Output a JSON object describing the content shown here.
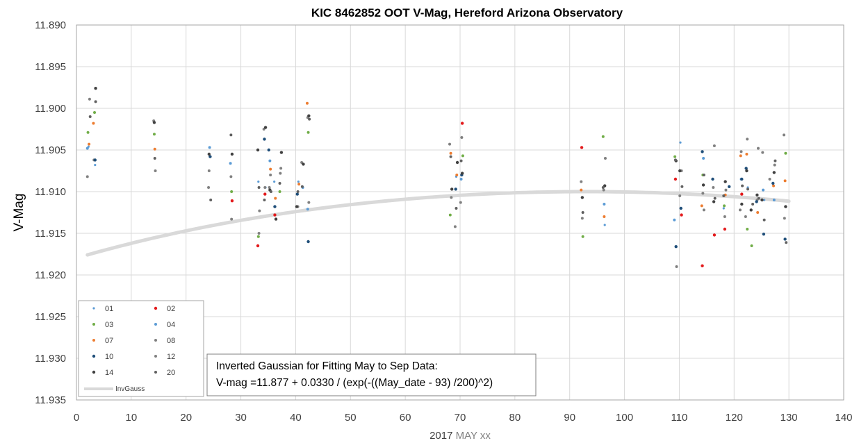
{
  "chart_data": {
    "type": "scatter",
    "title": "KIC 8462852 OOT V-Mag, Hereford Arizona Observatory",
    "xlabel_prefix": "2017 ",
    "xlabel_suffix": "MAY xx",
    "ylabel": "V-Mag",
    "xlim": [
      0,
      140
    ],
    "ylim": [
      11.935,
      11.89
    ],
    "y_inverted": true,
    "x_ticks": [
      0,
      10,
      20,
      30,
      40,
      50,
      60,
      70,
      80,
      90,
      100,
      110,
      120,
      130,
      140
    ],
    "y_ticks": [
      11.89,
      11.895,
      11.9,
      11.905,
      11.91,
      11.915,
      11.92,
      11.925,
      11.93,
      11.935
    ],
    "y_tick_labels": [
      "11.890",
      "11.895",
      "11.900",
      "11.905",
      "11.910",
      "11.915",
      "11.920",
      "11.925",
      "11.930",
      "11.935"
    ],
    "grid": true,
    "legend_position": "bottom-left",
    "series": [
      {
        "name": "01",
        "color": "#5b9bd5",
        "size": 1.6,
        "points": [
          [
            2.2,
            11.9046
          ],
          [
            3.4,
            11.9068
          ],
          [
            33.2,
            11.9088
          ],
          [
            34.5,
            11.9095
          ],
          [
            36.1,
            11.9088
          ],
          [
            40.5,
            11.9088
          ],
          [
            69.3,
            11.9082
          ],
          [
            96.4,
            11.914
          ],
          [
            110.2,
            11.9041
          ],
          [
            118.1,
            11.912
          ],
          [
            122.5,
            11.9095
          ],
          [
            125.5,
            11.911
          ]
        ]
      },
      {
        "name": "02",
        "color": "#e31a1c",
        "size": 2.2,
        "points": [
          [
            28.4,
            11.9111
          ],
          [
            33.1,
            11.9165
          ],
          [
            34.4,
            11.9103
          ],
          [
            36.2,
            11.9128
          ],
          [
            70.4,
            11.9018
          ],
          [
            92.2,
            11.9047
          ],
          [
            109.3,
            11.9085
          ],
          [
            110.4,
            11.9128
          ],
          [
            114.2,
            11.9189
          ],
          [
            116.4,
            11.9152
          ],
          [
            118.3,
            11.9145
          ],
          [
            121.4,
            11.9103
          ]
        ]
      },
      {
        "name": "03",
        "color": "#70ad47",
        "size": 2.0,
        "points": [
          [
            2.1,
            11.9029
          ],
          [
            3.3,
            11.9005
          ],
          [
            14.2,
            11.9031
          ],
          [
            28.3,
            11.91
          ],
          [
            33.2,
            11.9154
          ],
          [
            37.1,
            11.91
          ],
          [
            42.3,
            11.9029
          ],
          [
            68.2,
            11.9128
          ],
          [
            70.5,
            11.9057
          ],
          [
            92.4,
            11.9154
          ],
          [
            96.1,
            11.9034
          ],
          [
            109.2,
            11.9058
          ],
          [
            114.3,
            11.908
          ],
          [
            118.2,
            11.9117
          ],
          [
            122.4,
            11.9145
          ],
          [
            123.2,
            11.9165
          ],
          [
            129.4,
            11.9054
          ]
        ]
      },
      {
        "name": "04",
        "color": "#5b9bd5",
        "size": 2.0,
        "points": [
          [
            2.0,
            11.9048
          ],
          [
            24.3,
            11.9047
          ],
          [
            28.1,
            11.9066
          ],
          [
            35.3,
            11.9063
          ],
          [
            41.3,
            11.9095
          ],
          [
            42.2,
            11.9121
          ],
          [
            70.2,
            11.9085
          ],
          [
            96.3,
            11.9115
          ],
          [
            109.1,
            11.9134
          ],
          [
            114.4,
            11.906
          ],
          [
            121.3,
            11.9085
          ],
          [
            125.3,
            11.9098
          ],
          [
            127.3,
            11.911
          ]
        ]
      },
      {
        "name": "07",
        "color": "#ed7d31",
        "size": 2.0,
        "points": [
          [
            2.3,
            11.9043
          ],
          [
            3.1,
            11.9018
          ],
          [
            14.3,
            11.9049
          ],
          [
            35.4,
            11.9073
          ],
          [
            36.3,
            11.9108
          ],
          [
            40.6,
            11.9091
          ],
          [
            42.1,
            11.8994
          ],
          [
            68.3,
            11.9054
          ],
          [
            69.4,
            11.908
          ],
          [
            92.1,
            11.9098
          ],
          [
            96.3,
            11.913
          ],
          [
            114.1,
            11.9117
          ],
          [
            118.4,
            11.9104
          ],
          [
            121.2,
            11.9057
          ],
          [
            122.3,
            11.9055
          ],
          [
            124.3,
            11.9125
          ],
          [
            127.2,
            11.9093
          ],
          [
            129.3,
            11.9087
          ]
        ]
      },
      {
        "name": "08",
        "color": "#808080",
        "size": 2.0,
        "points": [
          [
            2.0,
            11.9082
          ],
          [
            3.2,
            11.9062
          ],
          [
            14.4,
            11.9075
          ],
          [
            24.1,
            11.9095
          ],
          [
            28.2,
            11.9082
          ],
          [
            33.4,
            11.9123
          ],
          [
            34.2,
            11.9025
          ],
          [
            35.2,
            11.9095
          ],
          [
            37.2,
            11.9078
          ],
          [
            40.4,
            11.9118
          ],
          [
            42.4,
            11.9113
          ],
          [
            68.4,
            11.9107
          ],
          [
            69.1,
            11.9142
          ],
          [
            70.1,
            11.9113
          ],
          [
            92.3,
            11.9132
          ],
          [
            96.2,
            11.9098
          ],
          [
            110.1,
            11.9105
          ],
          [
            114.5,
            11.9122
          ],
          [
            116.2,
            11.9095
          ],
          [
            118.5,
            11.9098
          ],
          [
            121.1,
            11.9122
          ],
          [
            122.1,
            11.913
          ],
          [
            124.2,
            11.911
          ],
          [
            126.5,
            11.9085
          ],
          [
            129.2,
            11.9132
          ]
        ]
      },
      {
        "name": "10",
        "color": "#1f4e79",
        "size": 2.2,
        "points": [
          [
            3.4,
            11.9062
          ],
          [
            24.4,
            11.9058
          ],
          [
            34.3,
            11.9037
          ],
          [
            35.1,
            11.905
          ],
          [
            36.2,
            11.9118
          ],
          [
            40.3,
            11.9103
          ],
          [
            42.3,
            11.916
          ],
          [
            69.2,
            11.9097
          ],
          [
            70.3,
            11.908
          ],
          [
            109.4,
            11.9166
          ],
          [
            110.3,
            11.912
          ],
          [
            114.2,
            11.9052
          ],
          [
            116.1,
            11.9085
          ],
          [
            119.1,
            11.9094
          ],
          [
            121.4,
            11.9085
          ],
          [
            122.2,
            11.9072
          ],
          [
            124.1,
            11.9112
          ],
          [
            125.4,
            11.9151
          ],
          [
            127.1,
            11.909
          ],
          [
            129.3,
            11.9157
          ]
        ]
      },
      {
        "name": "12",
        "color": "#808080",
        "size": 2.0,
        "points": [
          [
            2.4,
            11.8989
          ],
          [
            14.1,
            11.9015
          ],
          [
            24.2,
            11.9075
          ],
          [
            28.3,
            11.9133
          ],
          [
            33.3,
            11.915
          ],
          [
            34.4,
            11.9095
          ],
          [
            35.4,
            11.908
          ],
          [
            37.3,
            11.9072
          ],
          [
            41.1,
            11.9065
          ],
          [
            42.2,
            11.9011
          ],
          [
            68.1,
            11.9043
          ],
          [
            70.3,
            11.9035
          ],
          [
            92.1,
            11.9088
          ],
          [
            96.5,
            11.906
          ],
          [
            109.5,
            11.919
          ],
          [
            110.4,
            11.9075
          ],
          [
            114.3,
            11.9102
          ],
          [
            116.4,
            11.9045
          ],
          [
            118.3,
            11.913
          ],
          [
            121.3,
            11.9052
          ],
          [
            122.4,
            11.9037
          ],
          [
            124.4,
            11.9048
          ],
          [
            125.2,
            11.9053
          ],
          [
            127.4,
            11.9068
          ],
          [
            129.1,
            11.9032
          ]
        ]
      },
      {
        "name": "14",
        "color": "#404040",
        "size": 2.2,
        "points": [
          [
            3.5,
            11.8976
          ],
          [
            14.2,
            11.9017
          ],
          [
            24.2,
            11.9055
          ],
          [
            28.4,
            11.9055
          ],
          [
            33.1,
            11.905
          ],
          [
            34.5,
            11.9023
          ],
          [
            35.3,
            11.9098
          ],
          [
            36.4,
            11.9133
          ],
          [
            37.4,
            11.9053
          ],
          [
            40.2,
            11.9118
          ],
          [
            41.4,
            11.9067
          ],
          [
            42.4,
            11.9009
          ],
          [
            68.5,
            11.9097
          ],
          [
            69.5,
            11.9065
          ],
          [
            70.4,
            11.9078
          ],
          [
            92.3,
            11.9107
          ],
          [
            96.4,
            11.9093
          ],
          [
            109.4,
            11.9063
          ],
          [
            110.1,
            11.9075
          ],
          [
            114.4,
            11.9092
          ],
          [
            116.3,
            11.9112
          ],
          [
            118.4,
            11.9088
          ],
          [
            121.4,
            11.9115
          ],
          [
            122.3,
            11.9075
          ],
          [
            123.1,
            11.9122
          ],
          [
            124.2,
            11.9104
          ],
          [
            125.1,
            11.911
          ],
          [
            127.3,
            11.9077
          ],
          [
            129.4,
            11.9118
          ]
        ]
      },
      {
        "name": "20",
        "color": "#606060",
        "size": 2.0,
        "points": [
          [
            2.5,
            11.901
          ],
          [
            3.5,
            11.8992
          ],
          [
            14.3,
            11.906
          ],
          [
            24.5,
            11.911
          ],
          [
            28.2,
            11.9032
          ],
          [
            33.3,
            11.9095
          ],
          [
            34.3,
            11.911
          ],
          [
            35.5,
            11.91
          ],
          [
            37.1,
            11.909
          ],
          [
            40.4,
            11.91
          ],
          [
            41.2,
            11.9094
          ],
          [
            42.5,
            11.9013
          ],
          [
            68.3,
            11.9058
          ],
          [
            69.3,
            11.912
          ],
          [
            70.2,
            11.9063
          ],
          [
            92.4,
            11.9125
          ],
          [
            96.1,
            11.9095
          ],
          [
            109.3,
            11.9062
          ],
          [
            110.5,
            11.9094
          ],
          [
            114.5,
            11.908
          ],
          [
            116.5,
            11.9108
          ],
          [
            118.1,
            11.9105
          ],
          [
            121.5,
            11.9093
          ],
          [
            122.5,
            11.9097
          ],
          [
            123.4,
            11.9115
          ],
          [
            124.5,
            11.9108
          ],
          [
            125.5,
            11.9134
          ],
          [
            127.5,
            11.9063
          ],
          [
            129.5,
            11.9161
          ]
        ]
      }
    ],
    "fit": {
      "name": "InvGauss",
      "color": "#d9d9d9",
      "a": 11.877,
      "b": 0.033,
      "center": 93,
      "width": 200,
      "x_range": [
        2,
        130
      ]
    },
    "annotation_lines": [
      "Inverted Gaussian for Fitting May to Sep Data:",
      "V-mag =11.877 + 0.0330 / (exp(-((May_date - 93) /200)^2)"
    ]
  }
}
